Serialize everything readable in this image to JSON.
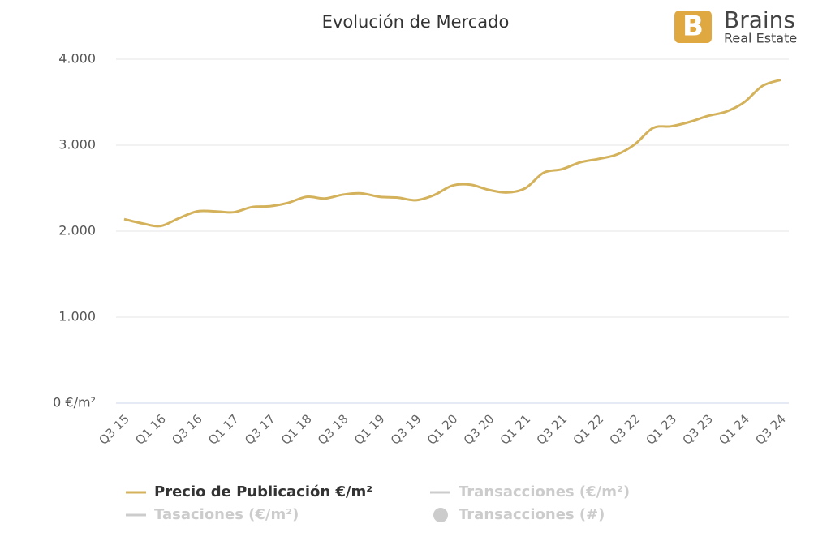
{
  "chart_data": {
    "type": "line",
    "title": "Evolución de Mercado",
    "logo": {
      "name": "Brains",
      "subtitle": "Real Estate",
      "letter": "B"
    },
    "categories": [
      "Q3 15",
      null,
      "Q1 16",
      null,
      "Q3 16",
      null,
      "Q1 17",
      null,
      "Q3 17",
      null,
      "Q1 18",
      null,
      "Q3 18",
      null,
      "Q1 19",
      null,
      "Q3 19",
      null,
      "Q1 20",
      null,
      "Q3 20",
      null,
      "Q1 21",
      null,
      "Q3 21",
      null,
      "Q1 22",
      null,
      "Q3 22",
      null,
      "Q1 23",
      null,
      "Q3 23",
      null,
      "Q1 24",
      null,
      "Q3 24"
    ],
    "series": [
      {
        "name": "Precio de Publicación €/m²",
        "color": "#d4b25c",
        "values": [
          2140,
          2090,
          2060,
          2150,
          2230,
          2230,
          2220,
          2280,
          2290,
          2330,
          2400,
          2380,
          2425,
          2440,
          2400,
          2390,
          2360,
          2420,
          2530,
          2540,
          2480,
          2450,
          2500,
          2680,
          2720,
          2800,
          2840,
          2890,
          3010,
          3200,
          3220,
          3270,
          3340,
          3390,
          3500,
          3690,
          3760
        ]
      }
    ],
    "inactive_series": [
      {
        "name": "Transacciones (€/m²)",
        "marker": "line"
      },
      {
        "name": "Tasaciones (€/m²)",
        "marker": "line"
      },
      {
        "name": "Transacciones (#)",
        "marker": "circle"
      }
    ],
    "inactive_color": "#cccccc",
    "ylim": [
      0,
      4000
    ],
    "yticks": [
      {
        "value": 0,
        "label": "0 €/m²"
      },
      {
        "value": 1000,
        "label": "1.000"
      },
      {
        "value": 2000,
        "label": "2.000"
      },
      {
        "value": 3000,
        "label": "3.000"
      },
      {
        "value": 4000,
        "label": "4.000"
      }
    ],
    "grid": true
  }
}
